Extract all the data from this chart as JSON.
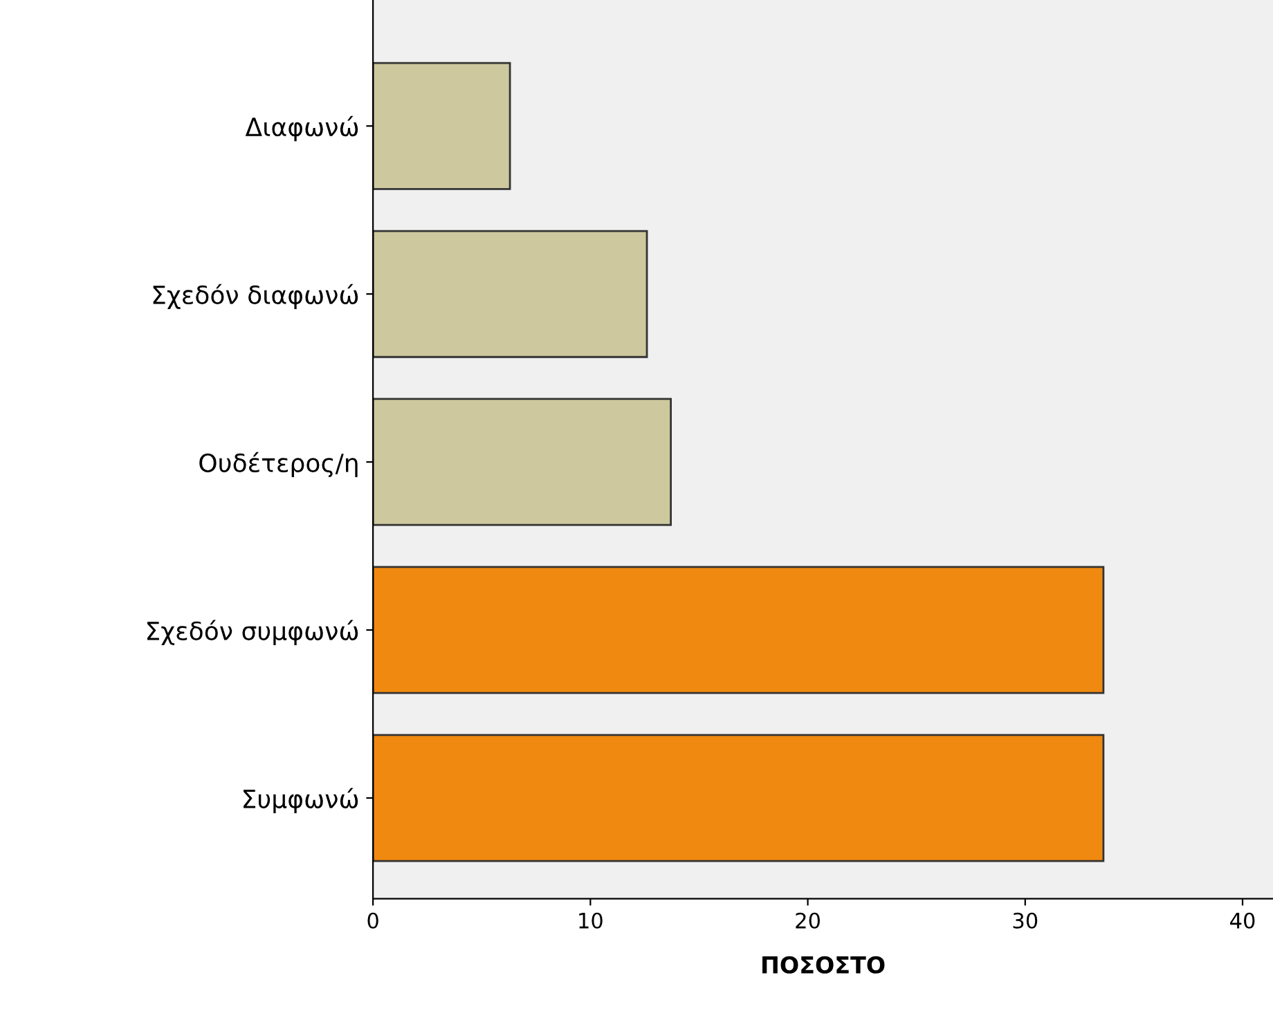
{
  "chart_data": {
    "type": "bar",
    "orientation": "horizontal",
    "xlabel": "ΠΟΣΟΣΤΟ",
    "categories": [
      "Διαφωνώ",
      "Σχεδόν διαφωνώ",
      "Ουδέτερος/η",
      "Σχεδόν συμφωνώ",
      "Συμφωνώ"
    ],
    "values": [
      6.3,
      12.6,
      13.7,
      33.6,
      33.6
    ],
    "colors": [
      "#cdc89e",
      "#cdc89e",
      "#cdc89e",
      "#f0890f",
      "#f0890f"
    ],
    "xlim": [
      0,
      41.4
    ],
    "xticks": [
      0,
      10,
      20,
      30,
      40
    ],
    "grid": false,
    "legend": false
  }
}
